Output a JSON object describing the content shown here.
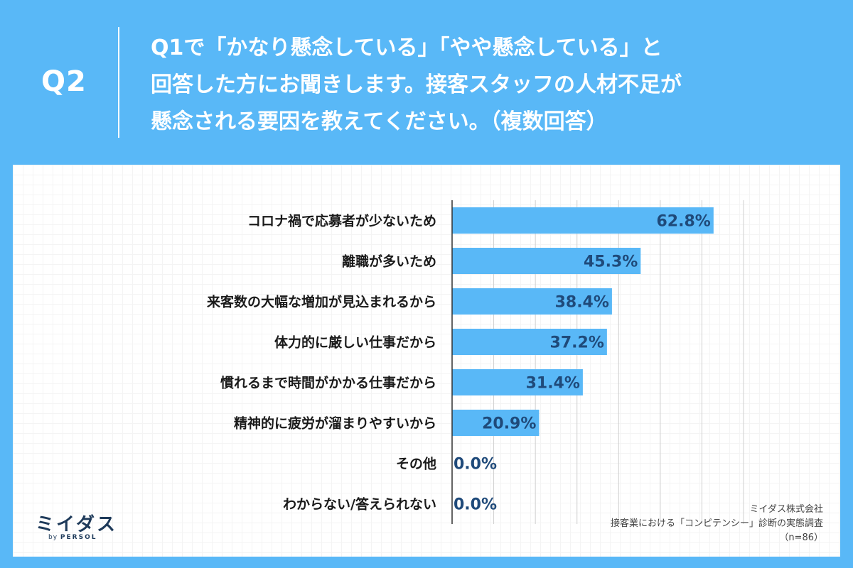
{
  "header": {
    "q_label": "Q2",
    "question_lines": [
      "Q1で「かなり懸念している」「やや懸念している」と",
      "回答した方にお聞きします。接客スタッフの人材不足が",
      "懸念される要因を教えてください。（複数回答）"
    ]
  },
  "chart_data": {
    "type": "bar",
    "orientation": "horizontal",
    "categories": [
      "コロナ禍で応募者が少ないため",
      "離職が多いため",
      "来客数の大幅な増加が見込まれるから",
      "体力的に厳しい仕事だから",
      "慣れるまで時間がかかる仕事だから",
      "精神的に疲労が溜まりやすいから",
      "その他",
      "わからない/答えられない"
    ],
    "values": [
      62.8,
      45.3,
      38.4,
      37.2,
      31.4,
      20.9,
      0.0,
      0.0
    ],
    "value_labels": [
      "62.8%",
      "45.3%",
      "38.4%",
      "37.2%",
      "31.4%",
      "20.9%",
      "0.0%",
      "0.0%"
    ],
    "xlim": [
      0,
      70
    ],
    "grid": true,
    "bar_color": "#59b8f7",
    "label_color": "#1f4a7a"
  },
  "logo": {
    "main": "ミイダス",
    "by": "by",
    "brand": "PERSOL"
  },
  "source": {
    "company": "ミイダス株式会社",
    "survey": "接客業における「コンピテンシー」診断の実態調査",
    "n": "（n=86）"
  },
  "colors": {
    "background": "#59b8f7",
    "panel": "#ffffff"
  }
}
